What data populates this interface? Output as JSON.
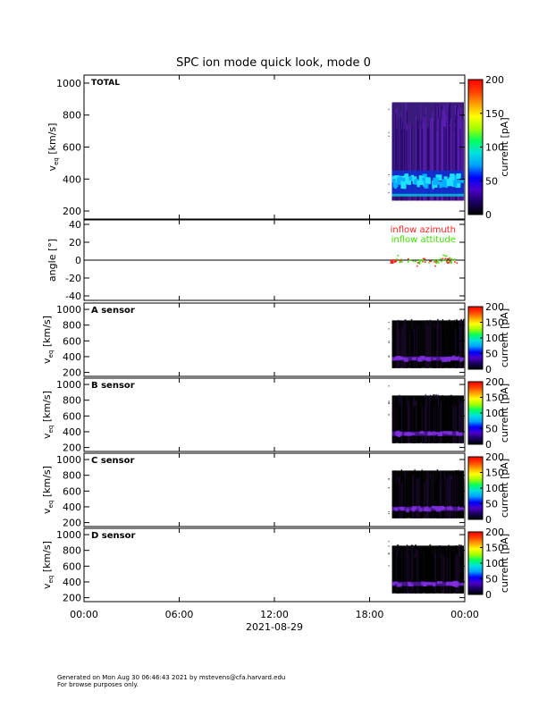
{
  "title": "SPC ion mode quick look, mode 0",
  "footer": {
    "line1": "Generated on Mon Aug 30 06:46:43 2021 by mstevens@cfa.harvard.edu",
    "line2": "For browse purposes only."
  },
  "colors": {
    "colormap": [
      "#000000",
      "#1a0060",
      "#4a00c8",
      "#0000ff",
      "#00a0ff",
      "#00e0e0",
      "#00ff60",
      "#a0ff00",
      "#ffff00",
      "#ffa000",
      "#ff4000",
      "#ff0000"
    ],
    "azimuth": "#ff2020",
    "attitude": "#40dd00",
    "plasma_bg": "#3a1a7a",
    "plasma_bg_sensor": "#050505"
  },
  "chart_data": {
    "type": "heatmap",
    "x_tick_labels": [
      "00:00",
      "06:00",
      "12:00",
      "18:00",
      "00:00"
    ],
    "x_ticks_hours": [
      0,
      6,
      12,
      18,
      24
    ],
    "xlabel": "2021-08-29",
    "xlim_hours": [
      0,
      24
    ],
    "data_start_hour": 19.3,
    "panels": [
      {
        "kind": "spectrogram",
        "label": "TOTAL",
        "ylabel_main": "v",
        "ylabel_sub": "eq",
        "ylabel_rest": " [km/s]",
        "y_ticks": [
          200,
          400,
          600,
          800,
          1000
        ],
        "ylim": [
          150,
          1050
        ],
        "colorbar": {
          "label": "current [pA]",
          "ticks": [
            0,
            50,
            100,
            150,
            200
          ],
          "range": [
            0,
            200
          ]
        },
        "core_speed_range": [
          330,
          420
        ]
      },
      {
        "kind": "angles",
        "ylabel": "angle [°]",
        "y_ticks": [
          -40,
          -20,
          0,
          20,
          40
        ],
        "ylim": [
          -45,
          45
        ],
        "legend": [
          "inflow azimuth",
          "inflow attitude"
        ]
      },
      {
        "kind": "spectrogram",
        "label": "A sensor",
        "ylabel_main": "v",
        "ylabel_sub": "eq",
        "ylabel_rest": " [km/s]",
        "y_ticks": [
          200,
          400,
          600,
          800,
          1000
        ],
        "ylim": [
          150,
          1080
        ],
        "colorbar": {
          "label": "current [pA]",
          "ticks": [
            0,
            50,
            100,
            150,
            200
          ],
          "range": [
            0,
            200
          ]
        },
        "core_speed_range": [
          330,
          420
        ]
      },
      {
        "kind": "spectrogram",
        "label": "B sensor",
        "ylabel_main": "v",
        "ylabel_sub": "eq",
        "ylabel_rest": " [km/s]",
        "y_ticks": [
          200,
          400,
          600,
          800,
          1000
        ],
        "ylim": [
          150,
          1080
        ],
        "colorbar": {
          "label": "current [pA]",
          "ticks": [
            0,
            50,
            100,
            150,
            200
          ],
          "range": [
            0,
            200
          ]
        },
        "core_speed_range": [
          330,
          420
        ]
      },
      {
        "kind": "spectrogram",
        "label": "C sensor",
        "ylabel_main": "v",
        "ylabel_sub": "eq",
        "ylabel_rest": " [km/s]",
        "y_ticks": [
          200,
          400,
          600,
          800,
          1000
        ],
        "ylim": [
          150,
          1080
        ],
        "colorbar": {
          "label": "current [pA]",
          "ticks": [
            0,
            50,
            100,
            150,
            200
          ],
          "range": [
            0,
            200
          ]
        },
        "core_speed_range": [
          330,
          420
        ]
      },
      {
        "kind": "spectrogram",
        "label": "D sensor",
        "ylabel_main": "v",
        "ylabel_sub": "eq",
        "ylabel_rest": " [km/s]",
        "y_ticks": [
          200,
          400,
          600,
          800,
          1000
        ],
        "ylim": [
          150,
          1080
        ],
        "colorbar": {
          "label": "current [pA]",
          "ticks": [
            0,
            50,
            100,
            150,
            200
          ],
          "range": [
            0,
            200
          ]
        },
        "core_speed_range": [
          330,
          420
        ]
      }
    ]
  }
}
